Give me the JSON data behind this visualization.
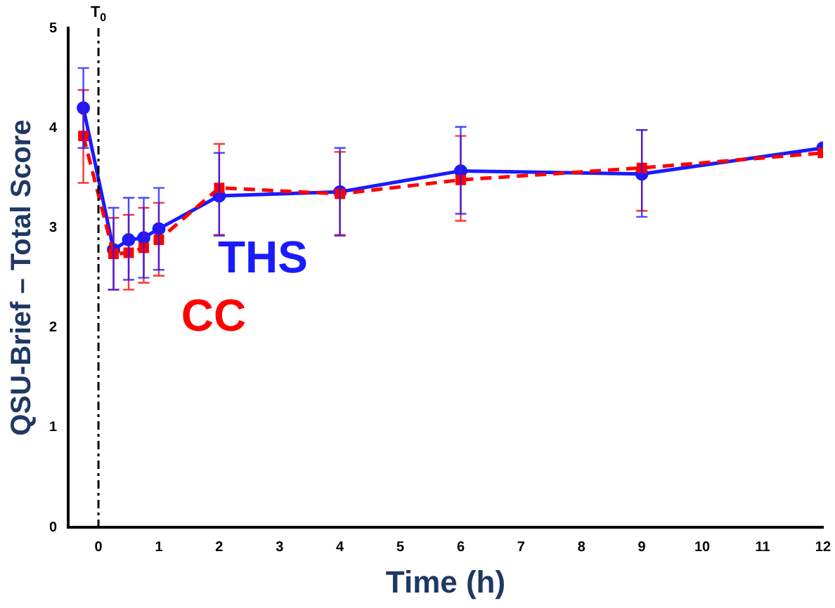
{
  "chart_data": {
    "type": "line",
    "xlabel": "Time (h)",
    "ylabel": "QSU-Brief – Total Score",
    "xlim": [
      -0.5,
      12
    ],
    "xticks": [
      0,
      1,
      2,
      3,
      4,
      5,
      6,
      7,
      8,
      9,
      10,
      11,
      12
    ],
    "ylim": [
      0,
      5
    ],
    "yticks": [
      0,
      1,
      2,
      3,
      4,
      5
    ],
    "grid": false,
    "legend": false,
    "x": [
      -0.25,
      0.25,
      0.5,
      0.75,
      1,
      2,
      4,
      6,
      9,
      12
    ],
    "ref_lines": [
      {
        "axis": "x",
        "value": 0,
        "label": "T$_{0}$",
        "color": "#000000",
        "line_style": "dashdot"
      }
    ],
    "series": [
      {
        "name": "CC",
        "color": "#ff0000",
        "marker": "square",
        "line_style": "dashed",
        "values": [
          3.92,
          2.74,
          2.75,
          2.8,
          2.88,
          3.4,
          3.34,
          3.48,
          3.6,
          3.75
        ],
        "errors": [
          [
            3.45,
            4.38
          ],
          [
            2.38,
            3.1
          ],
          [
            2.38,
            3.13
          ],
          [
            2.45,
            3.2
          ],
          [
            2.52,
            3.25
          ],
          [
            2.93,
            3.84
          ],
          [
            2.93,
            3.76
          ],
          [
            3.07,
            3.92
          ],
          [
            3.17,
            3.98
          ],
          null
        ]
      },
      {
        "name": "THS",
        "color": "#1a1aff",
        "marker": "circle",
        "line_style": "solid",
        "values": [
          4.2,
          2.78,
          2.88,
          2.9,
          2.99,
          3.32,
          3.36,
          3.57,
          3.54,
          3.8
        ],
        "errors": [
          [
            3.8,
            4.6
          ],
          [
            2.38,
            3.2
          ],
          [
            2.48,
            3.3
          ],
          [
            2.5,
            3.3
          ],
          [
            2.58,
            3.4
          ],
          [
            2.92,
            3.75
          ],
          [
            2.92,
            3.8
          ],
          [
            3.14,
            4.01
          ],
          [
            3.11,
            3.98
          ],
          null
        ]
      }
    ]
  }
}
